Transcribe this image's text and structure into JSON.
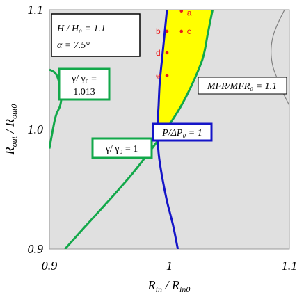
{
  "chart_data": {
    "type": "contour",
    "xlabel_main": "R",
    "xlabel_sub": "in",
    "xlabel_den_main": "R",
    "xlabel_den_sub": "in0",
    "ylabel_main": "R",
    "ylabel_sub": "out",
    "ylabel_den_main": "R",
    "ylabel_den_sub": "out0",
    "xlim": [
      0.9,
      1.1
    ],
    "ylim": [
      0.9,
      1.1
    ],
    "xticks": [
      {
        "value": 0.9,
        "label": "0.9"
      },
      {
        "value": 1.0,
        "label": "1"
      },
      {
        "value": 1.1,
        "label": "1.1"
      }
    ],
    "yticks": [
      {
        "value": 0.9,
        "label": "0.9"
      },
      {
        "value": 1.0,
        "label": "1.0"
      },
      {
        "value": 1.1,
        "label": "1.1"
      }
    ],
    "colors": {
      "background": "#e0e0e0",
      "gamma": "#12a84a",
      "pressure": "#1515c8",
      "mfr": "#808080",
      "feasible": "#ffff00",
      "points": "#e8191a"
    },
    "condition_box": {
      "line1": "H / H₀ = 1.1",
      "line2": "α = 7.5°"
    },
    "curves": {
      "gamma_1": {
        "label": "γ/ γ₀ = 1",
        "points": [
          [
            0.913,
            0.9
          ],
          [
            0.93,
            0.919
          ],
          [
            0.95,
            0.941
          ],
          [
            0.97,
            0.964
          ],
          [
            0.99,
            0.99
          ],
          [
            1.0,
            1.004
          ],
          [
            1.01,
            1.02
          ],
          [
            1.02,
            1.04
          ],
          [
            1.028,
            1.06
          ],
          [
            1.032,
            1.08
          ],
          [
            1.036,
            1.1
          ]
        ]
      },
      "gamma_2": {
        "label_line1": "γ/ γ₀ =",
        "label_line2": "1.013",
        "points": [
          [
            0.9,
            1.05
          ],
          [
            0.905,
            1.047
          ],
          [
            0.908,
            1.04
          ],
          [
            0.91,
            1.03
          ],
          [
            0.909,
            1.02
          ],
          [
            0.905,
            1.01
          ],
          [
            0.9,
            0.984
          ]
        ]
      },
      "pressure": {
        "label": "P/ΔP₀ = 1",
        "points": [
          [
            1.007,
            0.9
          ],
          [
            1.003,
            0.92
          ],
          [
            0.998,
            0.94
          ],
          [
            0.994,
            0.96
          ],
          [
            0.991,
            0.98
          ],
          [
            0.99,
            1.0
          ],
          [
            0.991,
            1.02
          ],
          [
            0.992,
            1.04
          ],
          [
            0.994,
            1.06
          ],
          [
            0.996,
            1.08
          ],
          [
            0.998,
            1.1
          ]
        ]
      },
      "mfr": {
        "label": "MFR/MFR₀ = 1.1",
        "points": [
          [
            1.096,
            1.1
          ],
          [
            1.091,
            1.09
          ],
          [
            1.087,
            1.08
          ],
          [
            1.085,
            1.07
          ],
          [
            1.085,
            1.06
          ],
          [
            1.087,
            1.05
          ],
          [
            1.091,
            1.04
          ],
          [
            1.095,
            1.03
          ],
          [
            1.1,
            1.02
          ]
        ]
      }
    },
    "points": [
      {
        "label": "a",
        "x": 1.01,
        "y": 1.099
      },
      {
        "label": "b",
        "x": 0.998,
        "y": 1.082
      },
      {
        "label": "c",
        "x": 1.01,
        "y": 1.082
      },
      {
        "label": "d",
        "x": 0.998,
        "y": 1.064
      },
      {
        "label": "e",
        "x": 0.998,
        "y": 1.045
      }
    ]
  }
}
